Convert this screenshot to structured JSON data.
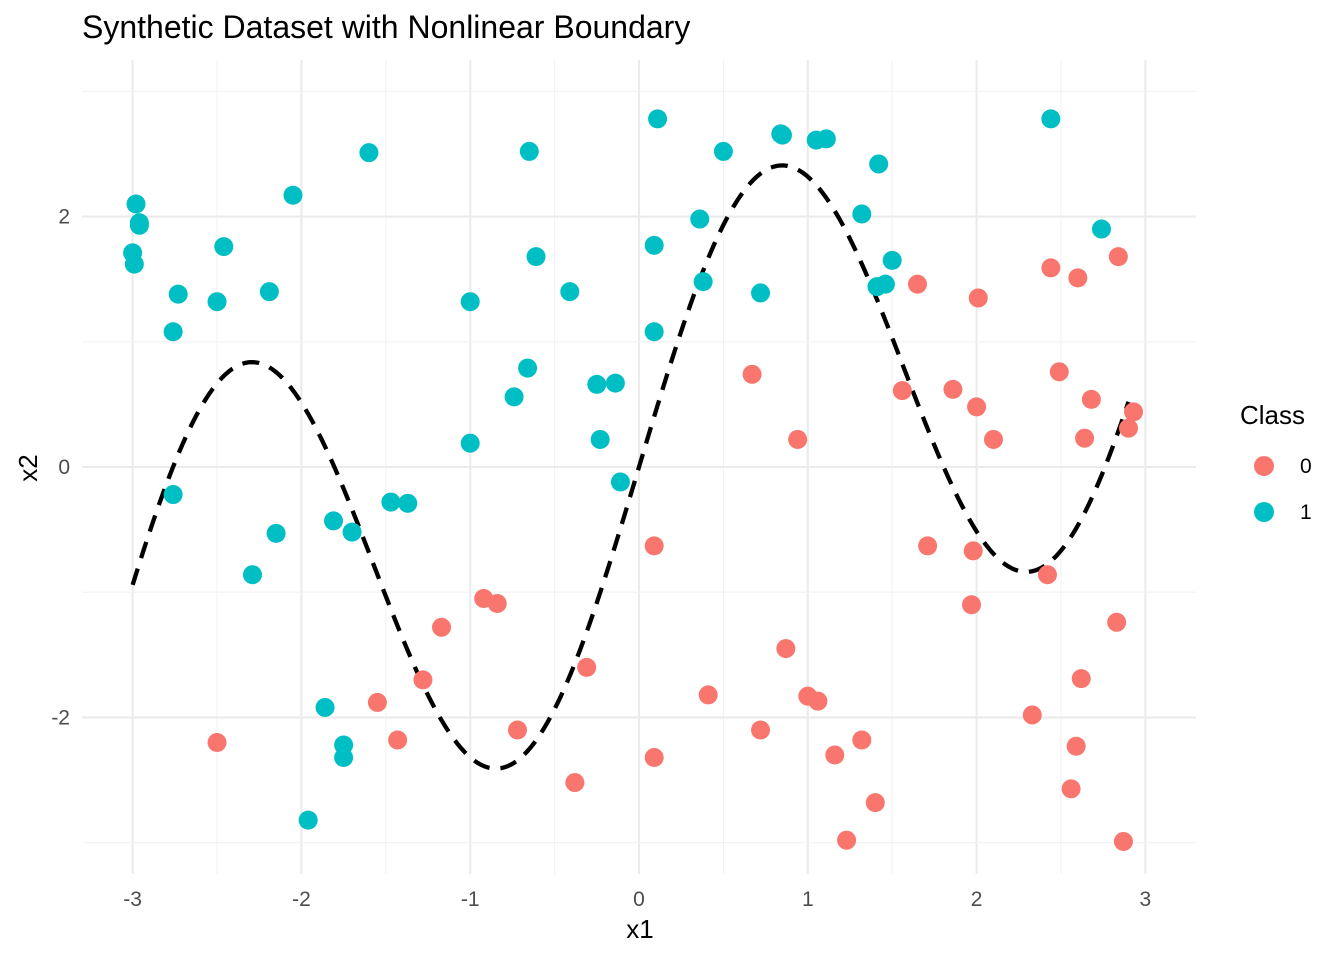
{
  "chart_data": {
    "type": "scatter",
    "title": "Synthetic Dataset with Nonlinear Boundary",
    "xlabel": "x1",
    "ylabel": "x2",
    "xlim": [
      -3.3,
      3.3
    ],
    "ylim": [
      -3.25,
      3.25
    ],
    "x_ticks": [
      -3,
      -2,
      -1,
      0,
      1,
      2,
      3
    ],
    "x_tick_labels": [
      "-3",
      "-2",
      "-1",
      "0",
      "1",
      "2",
      "3"
    ],
    "y_ticks": [
      -2,
      0,
      2
    ],
    "y_tick_labels": [
      "-2",
      "0",
      "2"
    ],
    "grid": true,
    "legend": {
      "title": "Class",
      "position": "right"
    },
    "boundary": {
      "style": "dashed",
      "color": "#000000"
    },
    "series": [
      {
        "name": "0",
        "color": "#F8766D",
        "points": [
          [
            -2.5,
            -2.2
          ],
          [
            -1.55,
            -1.88
          ],
          [
            -1.43,
            -2.18
          ],
          [
            -1.28,
            -1.7
          ],
          [
            -1.17,
            -1.28
          ],
          [
            -0.92,
            -1.05
          ],
          [
            -0.84,
            -1.09
          ],
          [
            -0.72,
            -2.1
          ],
          [
            -0.38,
            -2.52
          ],
          [
            -0.31,
            -1.6
          ],
          [
            0.09,
            -0.63
          ],
          [
            0.09,
            -2.32
          ],
          [
            0.41,
            -1.82
          ],
          [
            0.67,
            0.74
          ],
          [
            0.72,
            -2.1
          ],
          [
            0.87,
            -1.45
          ],
          [
            0.94,
            0.22
          ],
          [
            1.0,
            -1.83
          ],
          [
            1.06,
            -1.87
          ],
          [
            1.16,
            -2.3
          ],
          [
            1.23,
            -2.98
          ],
          [
            1.32,
            -2.18
          ],
          [
            1.4,
            -2.68
          ],
          [
            1.56,
            0.61
          ],
          [
            1.65,
            1.46
          ],
          [
            1.71,
            -0.63
          ],
          [
            1.86,
            0.62
          ],
          [
            1.97,
            -1.1
          ],
          [
            1.98,
            -0.67
          ],
          [
            2.0,
            0.48
          ],
          [
            2.01,
            1.35
          ],
          [
            2.1,
            0.22
          ],
          [
            2.33,
            -1.98
          ],
          [
            2.42,
            -0.86
          ],
          [
            2.44,
            1.59
          ],
          [
            2.49,
            0.76
          ],
          [
            2.56,
            -2.57
          ],
          [
            2.59,
            -2.23
          ],
          [
            2.6,
            1.51
          ],
          [
            2.62,
            -1.69
          ],
          [
            2.64,
            0.23
          ],
          [
            2.68,
            0.54
          ],
          [
            2.83,
            -1.24
          ],
          [
            2.84,
            1.68
          ],
          [
            2.87,
            -2.99
          ],
          [
            2.9,
            0.31
          ],
          [
            2.93,
            0.44
          ]
        ]
      },
      {
        "name": "1",
        "color": "#00BFC4",
        "points": [
          [
            -3.0,
            1.71
          ],
          [
            -2.99,
            1.62
          ],
          [
            -2.98,
            2.1
          ],
          [
            -2.96,
            1.95
          ],
          [
            -2.96,
            1.93
          ],
          [
            -2.76,
            1.08
          ],
          [
            -2.76,
            -0.22
          ],
          [
            -2.73,
            1.38
          ],
          [
            -2.5,
            1.32
          ],
          [
            -2.46,
            1.76
          ],
          [
            -2.29,
            -0.86
          ],
          [
            -2.19,
            1.4
          ],
          [
            -2.15,
            -0.53
          ],
          [
            -2.05,
            2.17
          ],
          [
            -1.96,
            -2.82
          ],
          [
            -1.86,
            -1.92
          ],
          [
            -1.81,
            -0.43
          ],
          [
            -1.75,
            -2.22
          ],
          [
            -1.75,
            -2.32
          ],
          [
            -1.7,
            -0.52
          ],
          [
            -1.6,
            2.51
          ],
          [
            -1.47,
            -0.28
          ],
          [
            -1.37,
            -0.29
          ],
          [
            -1.0,
            0.19
          ],
          [
            -1.0,
            1.32
          ],
          [
            -0.74,
            0.56
          ],
          [
            -0.66,
            0.79
          ],
          [
            -0.65,
            2.52
          ],
          [
            -0.61,
            1.68
          ],
          [
            -0.41,
            1.4
          ],
          [
            -0.25,
            0.66
          ],
          [
            -0.23,
            0.22
          ],
          [
            -0.14,
            0.67
          ],
          [
            -0.11,
            -0.12
          ],
          [
            0.09,
            1.77
          ],
          [
            0.09,
            1.08
          ],
          [
            0.11,
            2.78
          ],
          [
            0.36,
            1.98
          ],
          [
            0.38,
            1.48
          ],
          [
            0.5,
            2.52
          ],
          [
            0.72,
            1.39
          ],
          [
            0.84,
            2.66
          ],
          [
            0.85,
            2.65
          ],
          [
            1.05,
            2.61
          ],
          [
            1.11,
            2.62
          ],
          [
            1.32,
            2.02
          ],
          [
            1.41,
            1.44
          ],
          [
            1.42,
            2.42
          ],
          [
            1.46,
            1.46
          ],
          [
            1.5,
            1.65
          ],
          [
            2.44,
            2.78
          ],
          [
            2.74,
            1.9
          ]
        ]
      }
    ]
  }
}
